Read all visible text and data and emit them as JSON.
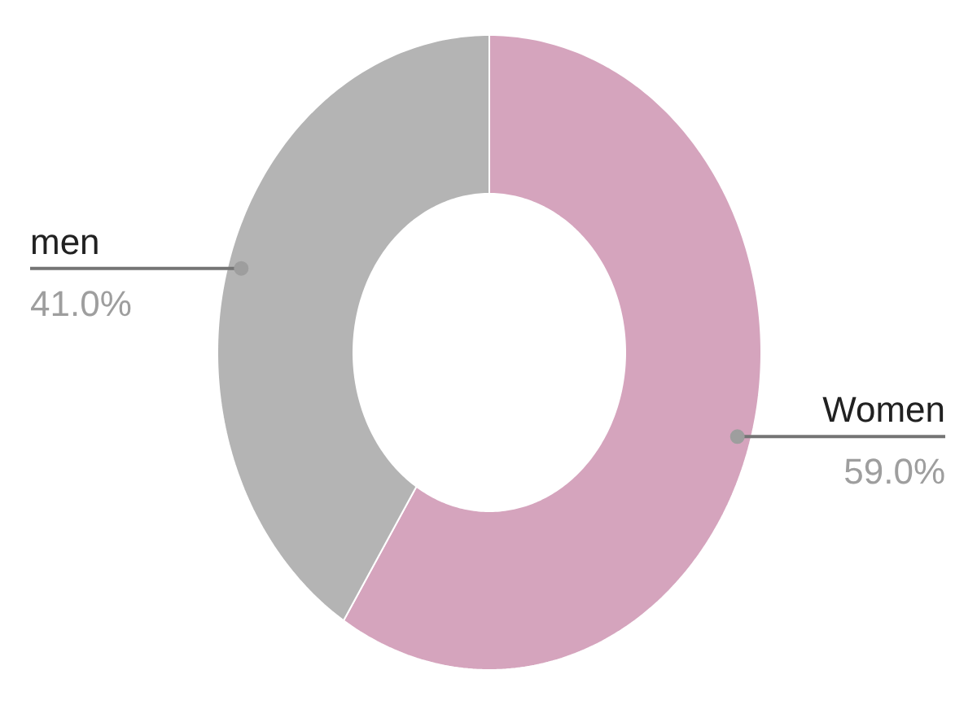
{
  "chart_data": {
    "type": "donut",
    "categories": [
      "Women",
      "men"
    ],
    "values": [
      59.0,
      41.0
    ],
    "colors": [
      "#d5a4bd",
      "#b4b4b4"
    ],
    "value_labels": [
      "59.0%",
      "41.0%"
    ]
  }
}
